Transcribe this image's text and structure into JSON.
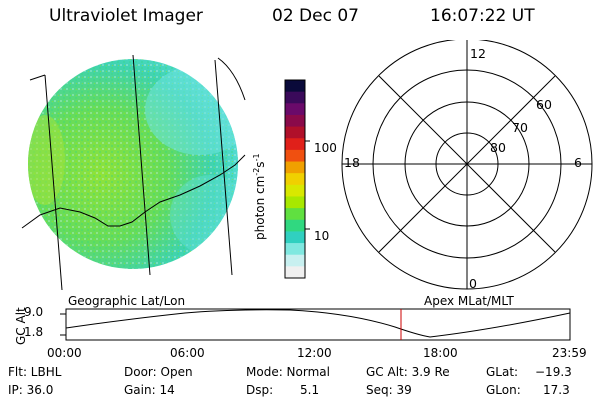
{
  "header": {
    "title": "Ultraviolet Imager",
    "date": "02 Dec 07",
    "time": "16:07:22 UT"
  },
  "colorbar": {
    "unit_base": "photon cm",
    "unit_exp1": "-2",
    "unit_mid": "s",
    "unit_exp2": "-1",
    "tick_100": "100",
    "tick_10": "10",
    "colors": [
      "#0a0a3a",
      "#3a0a5a",
      "#6a0a6a",
      "#8a0a4a",
      "#b0102a",
      "#e0201a",
      "#f05010",
      "#f0a000",
      "#f0d000",
      "#d8e800",
      "#a8e800",
      "#60e040",
      "#30d880",
      "#30d0c0",
      "#80e8e0",
      "#c8f0f0",
      "#f0f0f0"
    ]
  },
  "polar": {
    "top_label": "12",
    "bottom_label": "0",
    "left_label": "18",
    "right_label": "6",
    "ring_labels": [
      "60",
      "70",
      "80"
    ]
  },
  "timeline": {
    "left_title": "Geographic Lat/Lon",
    "right_title": "Apex MLat/MLT",
    "axis_label": "GC Alt",
    "y_ticks": [
      "9.0",
      "1.8"
    ],
    "x_ticks": [
      "00:00",
      "06:00",
      "12:00",
      "18:00",
      "23:59"
    ],
    "marker_color": "#cc0000"
  },
  "info": {
    "flt": "Flt: LBHL",
    "ip": "IP: 36.0",
    "door": "Door: Open",
    "gain": "Gain: 14",
    "mode": "Mode: Normal",
    "dsp_label": "Dsp:",
    "dsp_value": "5.1",
    "gcalt": "GC Alt: 3.9 Re",
    "seq": "Seq: 39",
    "glat_label": "GLat:",
    "glat_value": "−19.3",
    "glon_label": "GLon:",
    "glon_value": "17.3"
  }
}
